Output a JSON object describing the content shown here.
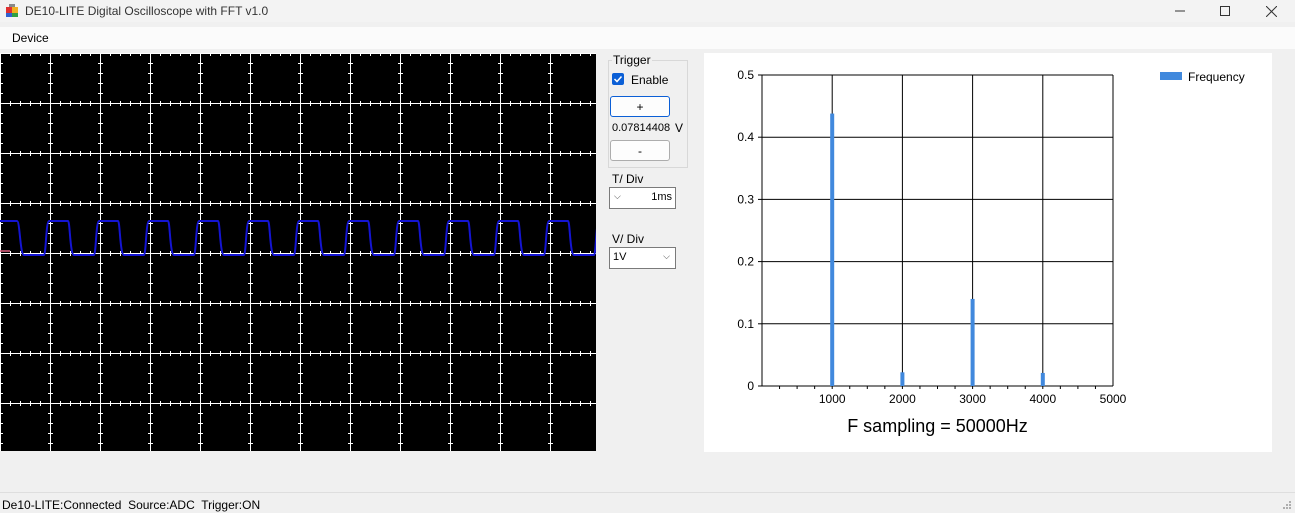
{
  "window": {
    "title": "DE10-LITE Digital Oscilloscope with FFT v1.0"
  },
  "menu": {
    "items": [
      "Device"
    ]
  },
  "trigger": {
    "group_label": "Trigger",
    "enable_label": "Enable",
    "enabled": true,
    "plus_label": "+",
    "minus_label": "-",
    "level_value": "0.07814408",
    "level_unit": "V"
  },
  "timebase": {
    "label": "T/ Div",
    "value": "1ms"
  },
  "voltage": {
    "label": "V/ Div",
    "value": "1V"
  },
  "status": {
    "text": "De10-LITE:Connected  Source:ADC  Trigger:ON"
  },
  "colors": {
    "waveform": "#1414d2",
    "fft_bar": "#4189dd",
    "grid": "#ffffff",
    "scope_bg": "#000000"
  },
  "chart_data": {
    "type": "bar",
    "x": [
      1000,
      2000,
      3000,
      4000
    ],
    "values": [
      0.438,
      0.022,
      0.14,
      0.021
    ],
    "xlim": [
      0,
      5000
    ],
    "ylim": [
      0,
      0.5
    ],
    "xticks": [
      "1000",
      "2000",
      "3000",
      "4000",
      "5000"
    ],
    "yticks": [
      "0",
      "0.1",
      "0.2",
      "0.3",
      "0.4",
      "0.5"
    ],
    "title": "F sampling = 50000Hz",
    "legend": {
      "name": "Frequency",
      "position": "top-right"
    },
    "grid": true
  }
}
